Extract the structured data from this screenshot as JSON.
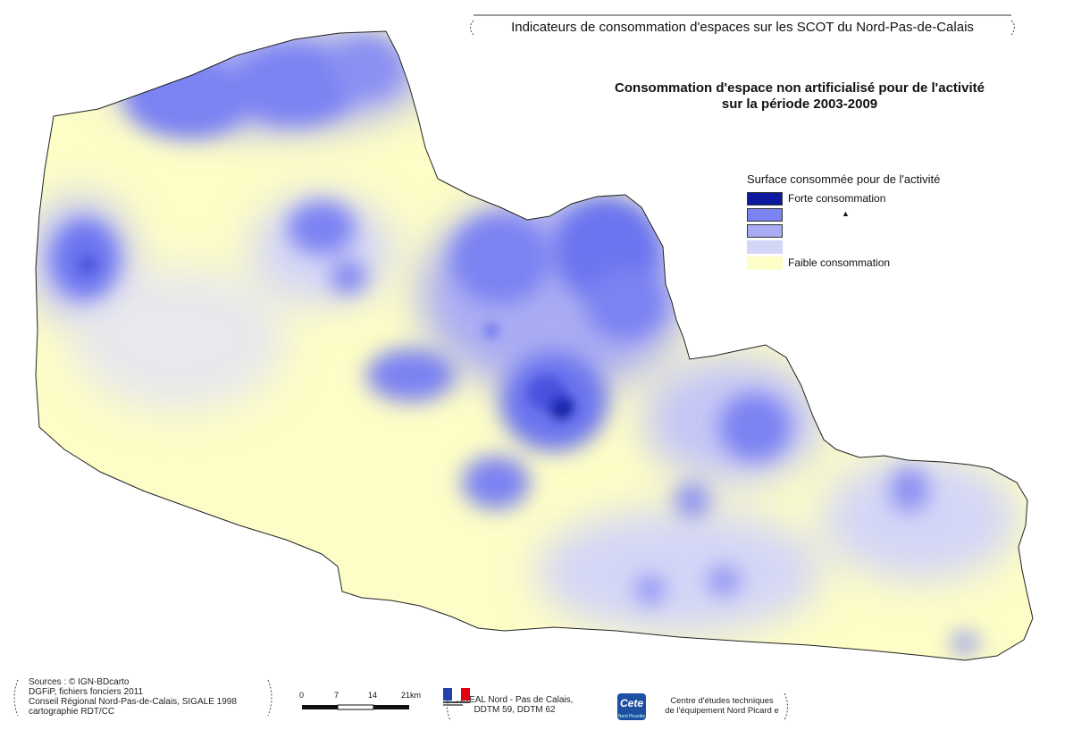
{
  "header": {
    "text": "Indicateurs de consommation d'espaces sur les SCOT du Nord-Pas-de-Calais"
  },
  "map_title": {
    "line1": "Consommation d'espace non artificialisé pour de l'activité",
    "line2": "sur la période 2003-2009"
  },
  "legend": {
    "title": "Surface consommée pour de l'activité",
    "items": [
      {
        "label": "Forte consommation",
        "color": "#0b1a9e"
      },
      {
        "label": "",
        "color": "#7b82f2"
      },
      {
        "label": "",
        "color": "#a9acf3"
      },
      {
        "label": "",
        "color": "#d4d6f7"
      },
      {
        "label": "Faible consommation",
        "color": "#fdfdc7"
      }
    ],
    "marker": "▲"
  },
  "sources": {
    "lines": [
      "Sources : © IGN-BDcarto",
      "DGFiP, fichiers fonciers 2011",
      "Conseil Régional Nord-Pas-de-Calais, SIGALE 1998",
      "cartographie RDT/CC"
    ]
  },
  "scalebar": {
    "ticks": [
      "0",
      "7",
      "14",
      "21km"
    ]
  },
  "producer": {
    "lines": [
      "DREAL Nord - Pas de Calais,",
      "DDTM 59, DDTM 62"
    ]
  },
  "cete": {
    "logo_text": "Cete",
    "logo_subtext": "Nord Picardie",
    "lines": [
      "Centre d'études techniques",
      "de l'équipement Nord Picard e"
    ]
  },
  "colors": {
    "low": "#fdfdc7",
    "mid_low": "#d4d6f7",
    "mid": "#a9acf3",
    "high": "#7b82f2",
    "very_high": "#0b1a9e"
  }
}
